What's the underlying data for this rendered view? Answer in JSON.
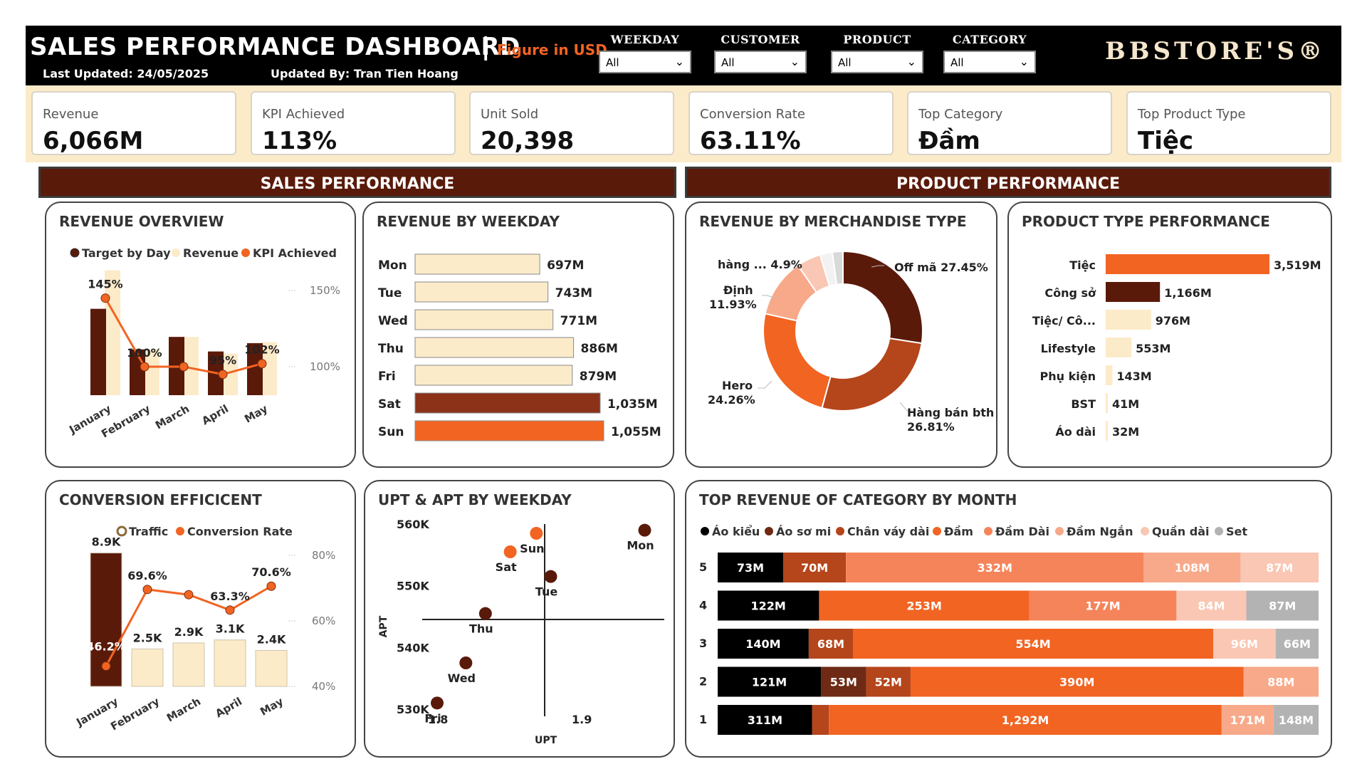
{
  "header": {
    "title": "SALES PERFORMANCE DASHBOARD",
    "separator": "|",
    "figure_note": "Figure in USD",
    "last_updated": "Last Updated: 24/05/2025",
    "updated_by": "Updated By: Tran Tien Hoang",
    "brand": "BBSTORE'S®",
    "filters": [
      {
        "label": "WEEKDAY",
        "value": "All"
      },
      {
        "label": "CUSTOMER",
        "value": "All"
      },
      {
        "label": "PRODUCT",
        "value": "All"
      },
      {
        "label": "CATEGORY",
        "value": "All"
      }
    ]
  },
  "kpis": [
    {
      "label": "Revenue",
      "value": "6,066M"
    },
    {
      "label": "KPI Achieved",
      "value": "113%"
    },
    {
      "label": "Unit Sold",
      "value": "20,398"
    },
    {
      "label": "Conversion Rate",
      "value": "63.11%"
    },
    {
      "label": "Top Category",
      "value": "Đầm"
    },
    {
      "label": "Top Product Type",
      "value": "Tiệc"
    }
  ],
  "sections": {
    "sales": "SALES PERFORMANCE",
    "product": "PRODUCT PERFORMANCE"
  },
  "colors": {
    "dark": "#5a1a0a",
    "orange": "#f26422",
    "cream": "#fcebc9",
    "rust": "#b5451b",
    "black": "#000000"
  },
  "chart_data": [
    {
      "id": "revenue-overview",
      "type": "bar",
      "title": "REVENUE OVERVIEW",
      "legend": [
        "Target by Day",
        "Revenue",
        "KPI Achieved"
      ],
      "categories": [
        "January",
        "February",
        "March",
        "April",
        "May"
      ],
      "series": [
        {
          "name": "Target by Day",
          "values": [
            830,
            440,
            560,
            420,
            500
          ]
        },
        {
          "name": "Revenue",
          "values": [
            1200,
            440,
            560,
            400,
            510
          ]
        }
      ],
      "kpi_labels": [
        "145%",
        "100%",
        "",
        "95%",
        "102%"
      ],
      "kpi_values": [
        145,
        100,
        100,
        95,
        102
      ],
      "y2_ticks": [
        "150%",
        "100%"
      ],
      "y2_tick_values": [
        150,
        100
      ],
      "y2lim": [
        60,
        170
      ]
    },
    {
      "id": "revenue-by-weekday",
      "type": "bar",
      "orientation": "horizontal",
      "title": "REVENUE BY WEEKDAY",
      "categories": [
        "Mon",
        "Tue",
        "Wed",
        "Thu",
        "Fri",
        "Sat",
        "Sun"
      ],
      "values": [
        697,
        743,
        771,
        886,
        879,
        1035,
        1055
      ],
      "labels": [
        "697M",
        "743M",
        "771M",
        "886M",
        "879M",
        "1,035M",
        "1,055M"
      ]
    },
    {
      "id": "revenue-by-merchandise",
      "type": "pie",
      "title": "REVENUE BY MERCHANDISE TYPE",
      "slices": [
        {
          "label": "Off mã 27.45%",
          "value": 27.45
        },
        {
          "label": "Hàng bán bth 26.81%",
          "value": 26.81
        },
        {
          "label": "Hero 24.26%",
          "value": 24.26
        },
        {
          "label": "Định 11.93%",
          "value": 11.93
        },
        {
          "label": "hàng ... 4.9%",
          "value": 4.9
        },
        {
          "label": "",
          "value": 2.5
        },
        {
          "label": "",
          "value": 2.15
        }
      ],
      "outside_labels": {
        "off": "Off mã 27.45%",
        "hang_line1": "Hàng bán bth",
        "hang_line2": "26.81%",
        "hero_line1": "Hero",
        "hero_line2": "24.26%",
        "dinh_line1": "Định",
        "dinh_line2": "11.93%",
        "hangdot": "hàng ... 4.9%"
      }
    },
    {
      "id": "product-type-performance",
      "type": "bar",
      "orientation": "horizontal",
      "title": "PRODUCT TYPE PERFORMANCE",
      "categories": [
        "Tiệc",
        "Công sở",
        "Tiệc/ Cô...",
        "Lifestyle",
        "Phụ kiện",
        "BST",
        "Áo dài"
      ],
      "values": [
        3519,
        1166,
        976,
        553,
        143,
        41,
        32
      ],
      "labels": [
        "3,519M",
        "1,166M",
        "976M",
        "553M",
        "143M",
        "41M",
        "32M"
      ]
    },
    {
      "id": "conversion-efficiency",
      "type": "bar",
      "title": "CONVERSION EFFICICENT",
      "legend": [
        "Traffic",
        "Conversion Rate"
      ],
      "categories": [
        "January",
        "February",
        "March",
        "April",
        "May"
      ],
      "traffic": [
        8.9,
        2.5,
        2.9,
        3.1,
        2.4
      ],
      "traffic_labels": [
        "8.9K",
        "2.5K",
        "2.9K",
        "3.1K",
        "2.4K"
      ],
      "rate": [
        46.2,
        69.6,
        68.0,
        63.3,
        70.6
      ],
      "rate_labels": [
        "46.2%",
        "69.6%",
        "",
        "63.3%",
        "70.6%"
      ],
      "y2_ticks": [
        "80%",
        "60%",
        "40%"
      ],
      "y2_tick_values": [
        80,
        60,
        40
      ],
      "y2lim": [
        40,
        80
      ]
    },
    {
      "id": "upt-apt-by-weekday",
      "type": "scatter",
      "title": "UPT & APT BY WEEKDAY",
      "xlabel": "UPT",
      "ylabel": "APT",
      "x_ticks": [
        "1.8",
        "1.9"
      ],
      "y_ticks": [
        "560K",
        "550K",
        "540K",
        "530K"
      ],
      "y_tick_values": [
        560,
        550,
        540,
        530
      ],
      "xlim": [
        1.78,
        1.96
      ],
      "ylim": [
        530,
        560
      ],
      "points": [
        {
          "label": "Mon",
          "x": 1.945,
          "y": 559.0,
          "color": "#5a1a0a"
        },
        {
          "label": "Sun",
          "x": 1.862,
          "y": 558.5,
          "color": "#f26422"
        },
        {
          "label": "Sat",
          "x": 1.842,
          "y": 555.5,
          "color": "#f26422"
        },
        {
          "label": "Tue",
          "x": 1.873,
          "y": 551.5,
          "color": "#5a1a0a"
        },
        {
          "label": "Thu",
          "x": 1.823,
          "y": 545.5,
          "color": "#5a1a0a"
        },
        {
          "label": "Wed",
          "x": 1.808,
          "y": 537.5,
          "color": "#5a1a0a"
        },
        {
          "label": "Fri",
          "x": 1.786,
          "y": 531.0,
          "color": "#5a1a0a"
        }
      ]
    },
    {
      "id": "top-revenue-category-month",
      "type": "bar",
      "orientation": "horizontal-stacked",
      "title": "TOP REVENUE OF CATEGORY BY MONTH",
      "legend": [
        "Áo kiểu",
        "Áo sơ mi",
        "Chân váy dài",
        "Đầm",
        "Đầm Dài",
        "Đầm Ngắn",
        "Quần dài",
        "Set"
      ],
      "legend_colors": [
        "#000000",
        "#6e2a14",
        "#b5451b",
        "#f26422",
        "#f5845a",
        "#f7a98a",
        "#f9c7b3",
        "#b3b3b3"
      ],
      "rows": [
        {
          "label": "5",
          "segments": [
            {
              "value": 73,
              "label": "73M",
              "color": "#000000"
            },
            {
              "value": 70,
              "label": "70M",
              "color": "#b5451b"
            },
            {
              "value": 332,
              "label": "332M",
              "color": "#f5845a"
            },
            {
              "value": 108,
              "label": "108M",
              "color": "#f7a98a"
            },
            {
              "value": 87,
              "label": "87M",
              "color": "#f9c7b3"
            }
          ]
        },
        {
          "label": "4",
          "segments": [
            {
              "value": 122,
              "label": "122M",
              "color": "#000000"
            },
            {
              "value": 253,
              "label": "253M",
              "color": "#f26422"
            },
            {
              "value": 177,
              "label": "177M",
              "color": "#f5845a"
            },
            {
              "value": 84,
              "label": "84M",
              "color": "#f9c7b3"
            },
            {
              "value": 87,
              "label": "87M",
              "color": "#b3b3b3"
            }
          ]
        },
        {
          "label": "3",
          "segments": [
            {
              "value": 140,
              "label": "140M",
              "color": "#000000"
            },
            {
              "value": 68,
              "label": "68M",
              "color": "#b5451b"
            },
            {
              "value": 554,
              "label": "554M",
              "color": "#f26422"
            },
            {
              "value": 96,
              "label": "96M",
              "color": "#f9c7b3"
            },
            {
              "value": 66,
              "label": "66M",
              "color": "#b3b3b3"
            }
          ]
        },
        {
          "label": "2",
          "segments": [
            {
              "value": 121,
              "label": "121M",
              "color": "#000000"
            },
            {
              "value": 53,
              "label": "53M",
              "color": "#6e2a14"
            },
            {
              "value": 52,
              "label": "52M",
              "color": "#b5451b"
            },
            {
              "value": 390,
              "label": "390M",
              "color": "#f26422"
            },
            {
              "value": 88,
              "label": "88M",
              "color": "#f7a98a"
            }
          ]
        },
        {
          "label": "1",
          "segments": [
            {
              "value": 311,
              "label": "311M",
              "color": "#000000"
            },
            {
              "value": 55,
              "label": "",
              "color": "#b5451b"
            },
            {
              "value": 1292,
              "label": "1,292M",
              "color": "#f26422"
            },
            {
              "value": 171,
              "label": "171M",
              "color": "#f7a98a"
            },
            {
              "value": 148,
              "label": "148M",
              "color": "#b3b3b3"
            }
          ]
        }
      ]
    }
  ]
}
